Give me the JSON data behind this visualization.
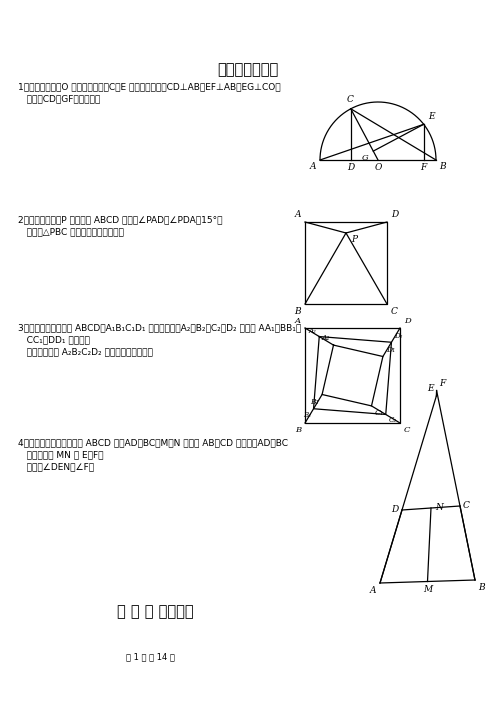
{
  "title1": "经典难题（一）",
  "title2": "经 典 难 题（二）",
  "page_footer": "第 1 页 共 14 页",
  "p1_line1": "1．已知：如图，O 是半圆的圆心，C、E 是圆上的两点，CD⊥AB，EF⊥AB，EG⊥CO。",
  "p1_line2": "   求证：CD＝GF。（初二）",
  "p2_line1": "2．已知：如图，P 是正方形 ABCD 内点，∠PAD＝∠PDA＝15°。",
  "p2_line2": "   求证：△PBC 是正三角形。（初二）",
  "p3_line1": "3．如图，已知四边形 ABCD、A₁B₁C₁D₁ 都是正方形，A₂、B₂、C₂、D₂ 分别是 AA₁、BB₁、",
  "p3_line2": "   CC₁、DD₁ 的中点。",
  "p3_line3": "   求证：四边形 A₂B₂C₂D₂ 是正方形。（初二）",
  "p4_line1": "4．已知：如图，在四边形 ABCD 中，AD＝BC，M、N 分别是 AB、CD 的中点，AD、BC",
  "p4_line2": "   的延长线交 MN 于 E、F。",
  "p4_line3": "   求证：∠DEN＝∠F。",
  "bg_color": "#ffffff"
}
